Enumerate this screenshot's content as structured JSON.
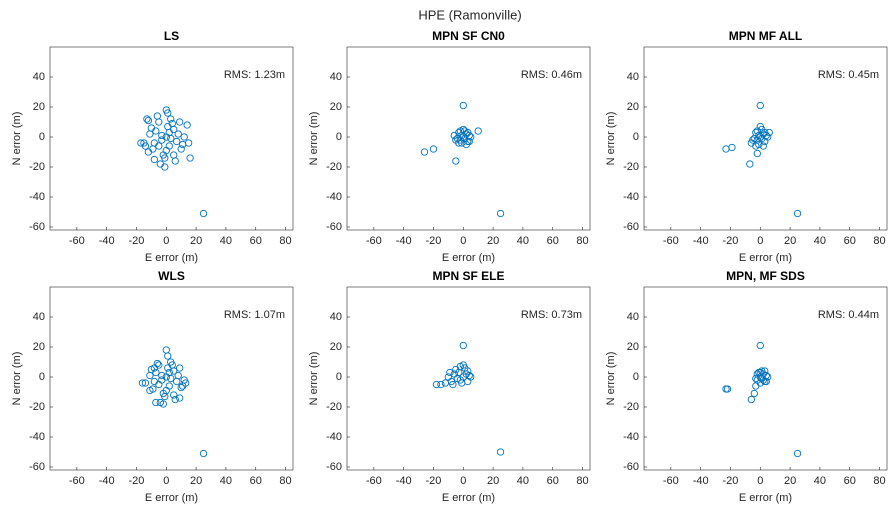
{
  "title": "HPE (Ramonville)",
  "chart_data": [
    {
      "type": "scatter",
      "title": "LS",
      "annotation": "RMS: 1.23m",
      "xlabel": "E error (m)",
      "ylabel": "N error (m)",
      "color": "#0072bd",
      "xlim": [
        -78,
        85
      ],
      "ylim": [
        -62,
        60
      ],
      "xticks": [
        -60,
        -40,
        -20,
        0,
        20,
        40,
        60,
        80
      ],
      "yticks": [
        -60,
        -40,
        -20,
        0,
        20,
        40
      ],
      "x": [
        0,
        2,
        -3,
        5,
        -5,
        8,
        -8,
        10,
        -10,
        12,
        -12,
        3,
        -2,
        1,
        0,
        -1,
        14,
        -14,
        6,
        -6,
        4,
        -4,
        7,
        -7,
        9,
        -9,
        2,
        -1,
        11,
        -11,
        -15,
        -13,
        1,
        0,
        -3,
        3,
        5,
        -5,
        25,
        -12,
        -8,
        15,
        -17,
        16
      ],
      "values": [
        0,
        3,
        -2,
        5,
        -6,
        2,
        -4,
        -8,
        6,
        0,
        -10,
        12,
        -12,
        16,
        18,
        -14,
        8,
        -6,
        -16,
        14,
        9,
        -18,
        -3,
        4,
        10,
        -8,
        -6,
        -20,
        -5,
        2,
        -4,
        12,
        7,
        -9,
        1,
        -1,
        -12,
        10,
        -51,
        11,
        -15,
        -4,
        -4,
        -14
      ]
    },
    {
      "type": "scatter",
      "title": "MPN SF CN0",
      "annotation": "RMS: 0.46m",
      "xlabel": "E error (m)",
      "ylabel": "N error (m)",
      "color": "#0072bd",
      "xlim": [
        -78,
        85
      ],
      "ylim": [
        -62,
        60
      ],
      "xticks": [
        -60,
        -40,
        -20,
        0,
        20,
        40,
        60,
        80
      ],
      "yticks": [
        -60,
        -40,
        -20,
        0,
        20,
        40
      ],
      "x": [
        0,
        2,
        -2,
        3,
        -3,
        4,
        -4,
        1,
        -1,
        5,
        -5,
        0,
        2,
        -2,
        3,
        -3,
        1,
        -1,
        4,
        -6,
        -26,
        -20,
        0,
        10,
        -5,
        25
      ],
      "values": [
        0,
        2,
        -2,
        -3,
        3,
        1,
        -1,
        4,
        -4,
        0,
        -2,
        5,
        -5,
        4,
        3,
        -4,
        -1,
        1,
        -3,
        1,
        -10,
        -8,
        21,
        4,
        -16,
        -51
      ]
    },
    {
      "type": "scatter",
      "title": "MPN MF ALL",
      "annotation": "RMS: 0.45m",
      "xlabel": "E error (m)",
      "ylabel": "N error (m)",
      "color": "#0072bd",
      "xlim": [
        -78,
        85
      ],
      "ylim": [
        -62,
        60
      ],
      "xticks": [
        -60,
        -40,
        -20,
        0,
        20,
        40,
        60,
        80
      ],
      "yticks": [
        -60,
        -40,
        -20,
        0,
        20,
        40
      ],
      "x": [
        0,
        2,
        -2,
        3,
        -3,
        4,
        -4,
        1,
        -1,
        5,
        -5,
        0,
        2,
        -2,
        3,
        -3,
        1,
        -1,
        -6,
        6,
        -23,
        -19,
        0,
        -7,
        -2,
        25
      ],
      "values": [
        0,
        2,
        -2,
        -3,
        3,
        1,
        -1,
        5,
        -5,
        0,
        -2,
        7,
        -6,
        4,
        3,
        -6,
        -1,
        1,
        -4,
        3,
        -8,
        -7,
        21,
        -18,
        -11,
        -51
      ]
    },
    {
      "type": "scatter",
      "title": "WLS",
      "annotation": "RMS: 1.07m",
      "xlabel": "E error (m)",
      "ylabel": "N error (m)",
      "color": "#0072bd",
      "xlim": [
        -78,
        85
      ],
      "ylim": [
        -62,
        60
      ],
      "xticks": [
        -60,
        -40,
        -20,
        0,
        20,
        40,
        60,
        80
      ],
      "yticks": [
        -60,
        -40,
        -20,
        0,
        20,
        40
      ],
      "x": [
        0,
        2,
        -3,
        5,
        -5,
        8,
        -8,
        10,
        -10,
        12,
        -11,
        3,
        -2,
        1,
        0,
        -1,
        13,
        -14,
        6,
        -6,
        4,
        -4,
        7,
        -7,
        9,
        -9,
        2,
        -2,
        11,
        -11,
        -16,
        -8,
        1,
        0,
        -3,
        3,
        5,
        -5,
        25,
        -7,
        9
      ],
      "values": [
        0,
        3,
        -2,
        4,
        -5,
        1,
        -3,
        -7,
        5,
        -2,
        -9,
        10,
        -11,
        14,
        18,
        -13,
        -4,
        -4,
        -15,
        9,
        8,
        -17,
        -3,
        3,
        6,
        -8,
        -6,
        -18,
        -6,
        1,
        -4,
        6,
        6,
        -9,
        1,
        -1,
        -12,
        8,
        -51,
        -17,
        -14
      ]
    },
    {
      "type": "scatter",
      "title": "MPN SF ELE",
      "annotation": "RMS: 0.73m",
      "xlabel": "E error (m)",
      "ylabel": "N error (m)",
      "color": "#0072bd",
      "xlim": [
        -78,
        85
      ],
      "ylim": [
        -62,
        60
      ],
      "xticks": [
        -60,
        -40,
        -20,
        0,
        20,
        40,
        60,
        80
      ],
      "yticks": [
        -60,
        -40,
        -20,
        0,
        20,
        40
      ],
      "x": [
        0,
        2,
        -2,
        3,
        -3,
        4,
        -4,
        -6,
        -8,
        -10,
        -12,
        -15,
        -18,
        1,
        -1,
        0,
        -5,
        -7,
        3,
        -9,
        5,
        -2,
        0,
        25
      ],
      "values": [
        0,
        2,
        -2,
        -3,
        3,
        1,
        -1,
        2,
        -3,
        0,
        -4,
        -5,
        -5,
        6,
        -4,
        8,
        5,
        -5,
        4,
        3,
        0,
        7,
        21,
        -50
      ]
    },
    {
      "type": "scatter",
      "title": "MPN, MF SDS",
      "annotation": "RMS: 0.44m",
      "xlabel": "E error (m)",
      "ylabel": "N error (m)",
      "color": "#0072bd",
      "xlim": [
        -78,
        85
      ],
      "ylim": [
        -62,
        60
      ],
      "xticks": [
        -60,
        -40,
        -20,
        0,
        20,
        40,
        60,
        80
      ],
      "yticks": [
        -60,
        -40,
        -20,
        0,
        20,
        40
      ],
      "x": [
        0,
        2,
        -2,
        3,
        -1,
        4,
        -3,
        1,
        0,
        5,
        2,
        0,
        3,
        -2,
        4,
        1,
        -23,
        -22,
        0,
        -6,
        -4,
        -3,
        25
      ],
      "values": [
        0,
        2,
        -2,
        -3,
        3,
        1,
        -1,
        4,
        -4,
        0,
        -2,
        3,
        4,
        2,
        -3,
        -1,
        -8,
        -8,
        21,
        -15,
        -11,
        -6,
        -51
      ]
    }
  ]
}
